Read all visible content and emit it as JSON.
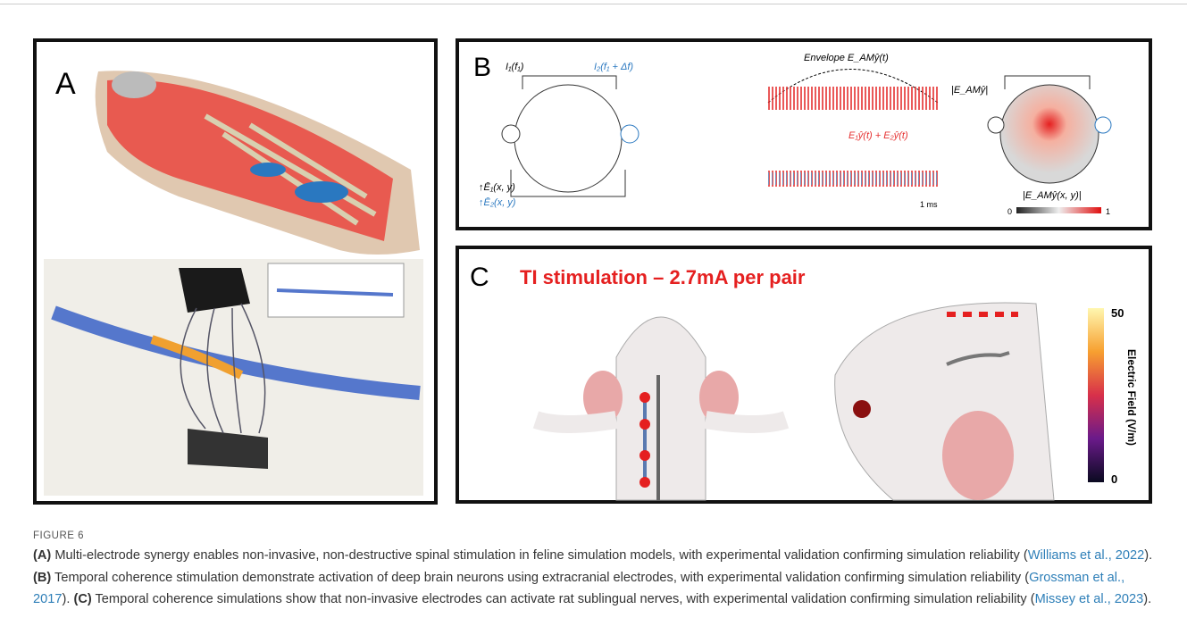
{
  "figure": {
    "label": "FIGURE 6",
    "caption": [
      {
        "bold": "(A)",
        "text": " Multi-electrode synergy enables non-invasive, non-destructive spinal stimulation in feline simulation models, with experimental validation confirming simulation reliability (",
        "link": "Williams et al., 2022",
        "end": "). "
      },
      {
        "bold": "(B)",
        "text": " Temporal coherence stimulation demonstrate activation of deep brain neurons using extracranial electrodes, with experimental validation confirming simulation reliability (",
        "link": "Grossman et al., 2017",
        "end": "). "
      },
      {
        "bold": "(C)",
        "text": " Temporal coherence simulations show that non-invasive electrodes can activate rat sublingual nerves, with experimental validation confirming simulation reliability (",
        "link": "Missey et al., 2023",
        "end": ")."
      }
    ]
  },
  "panels": {
    "a": {
      "label": "A"
    },
    "b": {
      "label": "B",
      "i1": "I₁(f₁)",
      "i2": "I₂(f₁ + Δf)",
      "e1": "↑Ē₁(x, y)",
      "e2": "↑Ē₂(x, y)",
      "envelope": "Envelope E_AMŷ(t)",
      "amp": "|E_AMŷ|",
      "sum": "E₁ŷ(t) + E₂ŷ(t)",
      "ms": "1 ms",
      "field": "|E_AMŷ(x, y)|",
      "cmin": "0",
      "cmax": "1"
    },
    "c": {
      "label": "C",
      "title": "TI stimulation – 2.7mA per pair",
      "cbar_max": "50",
      "cbar_min": "0",
      "cbar_label": "Electric Field (V/m)"
    }
  }
}
